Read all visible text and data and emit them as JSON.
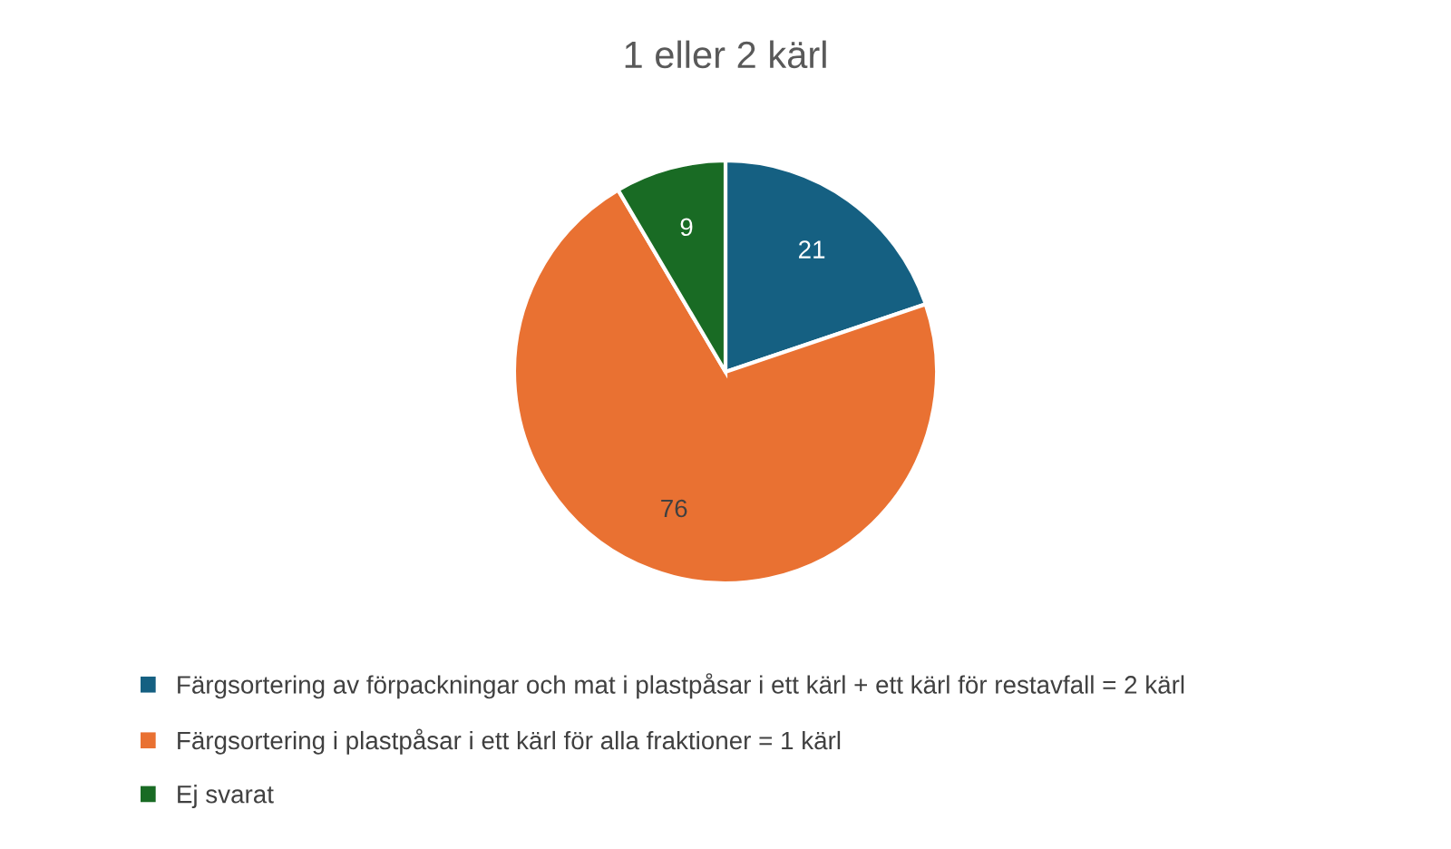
{
  "chart_data": {
    "type": "pie",
    "title": "1 eller 2 kärl",
    "categories": [
      "Färgsortering av förpackningar och mat i plastpåsar i ett kärl + ett kärl för restavfall = 2 kärl",
      "Färgsortering i plastpåsar i ett kärl för alla fraktioner = 1 kärl",
      "Ej svarat"
    ],
    "values": [
      21,
      76,
      9
    ],
    "colors": [
      "#156082",
      "#e97132",
      "#196b24"
    ],
    "data_labels": true,
    "legend": "bottom"
  }
}
